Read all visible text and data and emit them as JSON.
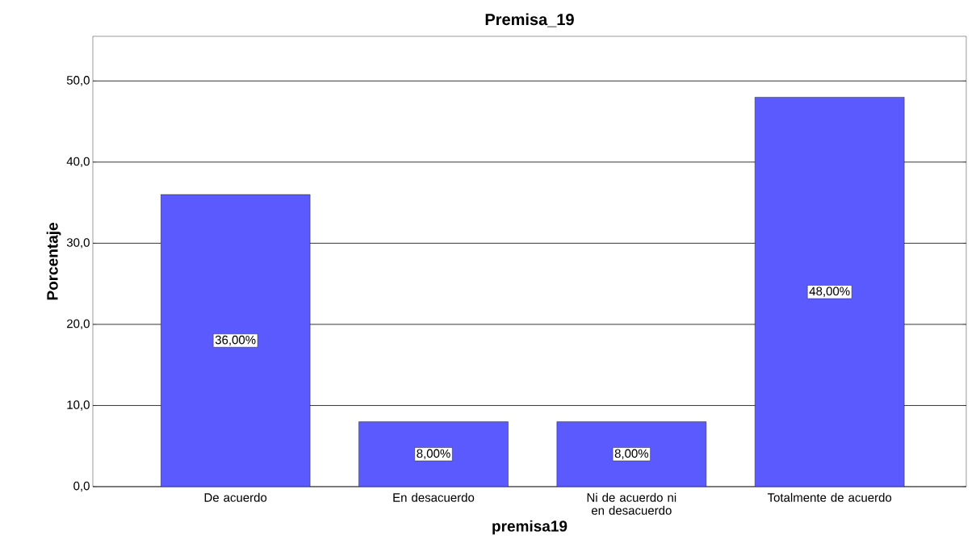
{
  "chart_data": {
    "type": "bar",
    "title": "Premisa_19",
    "xlabel": "premisa19",
    "ylabel": "Porcentaje",
    "categories": [
      "De acuerdo",
      "En desacuerdo",
      "Ni de acuerdo ni en desacuerdo",
      "Totalmente de acuerdo"
    ],
    "values": [
      36,
      8,
      8,
      48
    ],
    "value_labels": [
      "36,00%",
      "8,00%",
      "8,00%",
      "48,00%"
    ],
    "color": "#5a5aff",
    "ylim": [
      0,
      55.5
    ],
    "yticks": [
      {
        "value": 0,
        "label": "0,0"
      },
      {
        "value": 10,
        "label": "10,0"
      },
      {
        "value": 20,
        "label": "20,0"
      },
      {
        "value": 30,
        "label": "30,0"
      },
      {
        "value": 40,
        "label": "40,0"
      },
      {
        "value": 50,
        "label": "50,0"
      }
    ],
    "grid": "y"
  }
}
